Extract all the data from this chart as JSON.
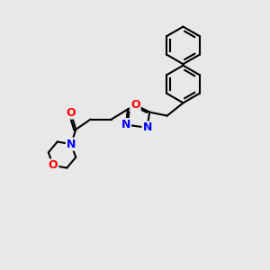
{
  "bg_color": "#e8e8e8",
  "bond_color": "#000000",
  "bond_width": 1.5,
  "atom_colors": {
    "O": "#ff0000",
    "N": "#0000ff"
  },
  "font_size": 9
}
